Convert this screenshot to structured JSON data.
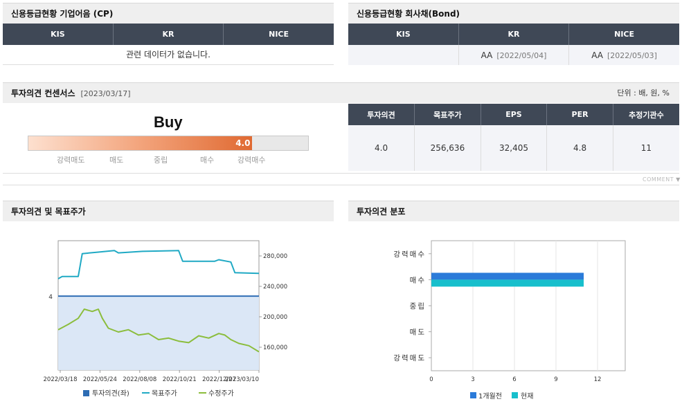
{
  "cp": {
    "title": "신용등급현황 기업어음 (CP)",
    "headers": [
      "KIS",
      "KR",
      "NICE"
    ],
    "empty_text": "관련 데이터가 없습니다."
  },
  "bond": {
    "title": "신용등급현황 회사채(Bond)",
    "headers": [
      "KIS",
      "KR",
      "NICE"
    ],
    "kis": "",
    "kr_grade": "AA",
    "kr_date": "[2022/05/04]",
    "nice_grade": "AA",
    "nice_date": "[2022/05/03]"
  },
  "consensus": {
    "title": "투자의견 컨센서스",
    "date": "[2023/03/17]",
    "unit": "단위 : 배, 원, %",
    "opinion_text": "Buy",
    "score": 4.0,
    "score_label": "4.0",
    "scale_min": 0,
    "scale_max": 5,
    "scale_labels": [
      "강력매도",
      "매도",
      "중립",
      "매수",
      "강력매수"
    ],
    "headers": [
      "투자의견",
      "목표주가",
      "EPS",
      "PER",
      "추정기관수"
    ],
    "values": [
      "4.0",
      "256,636",
      "32,405",
      "4.8",
      "11"
    ],
    "comment": "COMMENT"
  },
  "left_chart": {
    "title": "투자의견 및 목표주가",
    "colors": {
      "opinion": "#2e6db4",
      "target": "#1fa9c4",
      "price": "#8bbd3c",
      "area": "#dbe7f6"
    },
    "chart_data": {
      "type": "line",
      "x_ticks": [
        "2022/03/18",
        "2022/05/24",
        "2022/08/08",
        "2022/10/21",
        "2022/12/27",
        "2023/03/10"
      ],
      "y_left_ticks": [
        "4"
      ],
      "y_right_ticks": [
        "280,000",
        "240,000",
        "200,000",
        "160,000"
      ],
      "y_right_range": [
        130000,
        300000
      ],
      "y_left_range": [
        0,
        7
      ],
      "series": [
        {
          "name": "투자의견(좌)",
          "axis": "left",
          "values": [
            4,
            4
          ]
        },
        {
          "name": "목표주가",
          "axis": "right",
          "x": [
            0.0,
            0.02,
            0.1,
            0.12,
            0.2,
            0.28,
            0.3,
            0.42,
            0.6,
            0.62,
            0.78,
            0.8,
            0.86,
            0.88,
            1.0
          ],
          "values": [
            250000,
            253000,
            253000,
            283000,
            285000,
            287000,
            284000,
            286000,
            287000,
            273000,
            273000,
            275000,
            272000,
            258000,
            257000
          ]
        },
        {
          "name": "수정주가",
          "axis": "right",
          "x": [
            0.0,
            0.05,
            0.1,
            0.13,
            0.17,
            0.2,
            0.22,
            0.25,
            0.3,
            0.35,
            0.4,
            0.45,
            0.5,
            0.55,
            0.6,
            0.65,
            0.7,
            0.75,
            0.8,
            0.83,
            0.86,
            0.9,
            0.95,
            1.0
          ],
          "values": [
            183000,
            190000,
            198000,
            210000,
            207000,
            210000,
            198000,
            185000,
            180000,
            183000,
            176000,
            178000,
            170000,
            172000,
            168000,
            166000,
            175000,
            172000,
            178000,
            176000,
            170000,
            165000,
            162000,
            154000
          ]
        }
      ]
    },
    "legend": [
      "투자의견(좌)",
      "목표주가",
      "수정주가"
    ]
  },
  "right_chart": {
    "title": "투자의견 분포",
    "colors": {
      "prev": "#2b7bd9",
      "now": "#17bfcc"
    },
    "chart_data": {
      "type": "bar",
      "orientation": "horizontal",
      "categories": [
        "강력매수",
        "매수",
        "중립",
        "매도",
        "강력매도"
      ],
      "xlim": [
        0,
        14
      ],
      "x_ticks": [
        "0",
        "3",
        "6",
        "9",
        "12"
      ],
      "series": [
        {
          "name": "1개월전",
          "values": [
            0,
            11,
            0,
            0,
            0
          ]
        },
        {
          "name": "현재",
          "values": [
            0,
            11,
            0,
            0,
            0
          ]
        }
      ]
    },
    "legend": [
      "1개월전",
      "현재"
    ]
  }
}
